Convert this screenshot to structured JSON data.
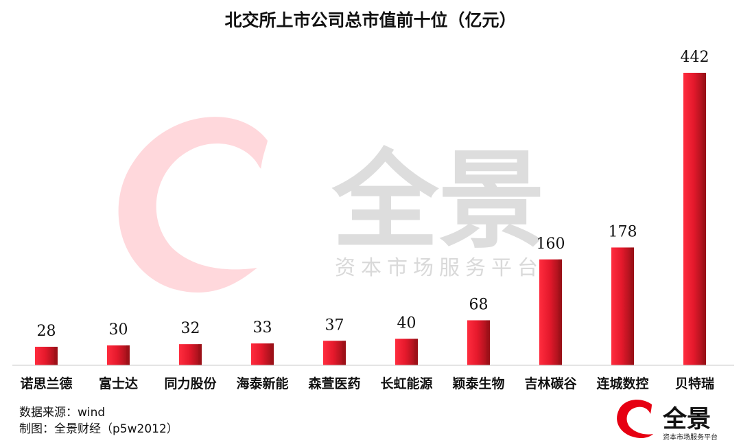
{
  "chart_data": {
    "type": "bar",
    "title": "北交所上市公司总市值前十位（亿元）",
    "categories": [
      "诺思兰德",
      "富士达",
      "同力股份",
      "海泰新能",
      "森萱医药",
      "长虹能源",
      "颖泰生物",
      "吉林碳谷",
      "连城数控",
      "贝特瑞"
    ],
    "values": [
      28,
      30,
      32,
      33,
      37,
      40,
      68,
      160,
      178,
      442
    ],
    "data_labels": [
      "28",
      "30",
      "32",
      "33",
      "37",
      "40",
      "68",
      "160",
      "178",
      "442"
    ],
    "xlabel": "",
    "ylabel": "",
    "ylim": [
      0,
      442
    ],
    "grid": false,
    "legend": "none",
    "bar_color": "#e8202f",
    "bar_shade_color": "#9b1018"
  },
  "footer": {
    "source": "数据来源：wind",
    "credit": "制图：全景财经（p5w2012）"
  },
  "watermark": {
    "brand": "全景",
    "tagline": "资本市场服务平台",
    "brand_color": "#e60012",
    "text_color": "#d9d9d9"
  },
  "logo": {
    "brand": "全景",
    "tagline": "资本市场服务平台"
  }
}
